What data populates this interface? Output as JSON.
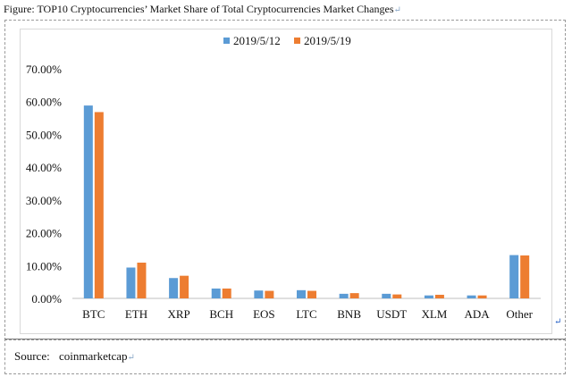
{
  "figure": {
    "title": "Figure: TOP10 Cryptocurrencies’ Market Share of Total Cryptocurrencies Market Changes",
    "return_mark": "↵"
  },
  "source": {
    "label": "Source:",
    "value": "coinmarketcap",
    "return_mark": "↵"
  },
  "chart_data": {
    "type": "bar",
    "title": "",
    "xlabel": "",
    "ylabel": "",
    "ylim": [
      0,
      0.7
    ],
    "ytick_values": [
      0,
      0.1,
      0.2,
      0.3,
      0.4,
      0.5,
      0.6,
      0.7
    ],
    "ytick_labels": [
      "0.00%",
      "10.00%",
      "20.00%",
      "30.00%",
      "40.00%",
      "50.00%",
      "60.00%",
      "70.00%"
    ],
    "categories": [
      "BTC",
      "ETH",
      "XRP",
      "BCH",
      "EOS",
      "LTC",
      "BNB",
      "USDT",
      "XLM",
      "ADA",
      "Other"
    ],
    "series": [
      {
        "name": "2019/5/12",
        "color": "#5b9bd5",
        "values": [
          0.588,
          0.094,
          0.062,
          0.03,
          0.024,
          0.025,
          0.014,
          0.014,
          0.009,
          0.009,
          0.132
        ]
      },
      {
        "name": "2019/5/19",
        "color": "#ed7d31",
        "values": [
          0.568,
          0.109,
          0.069,
          0.03,
          0.023,
          0.023,
          0.016,
          0.012,
          0.011,
          0.009,
          0.131
        ]
      }
    ],
    "grid": false,
    "legend_position": "top-center"
  }
}
